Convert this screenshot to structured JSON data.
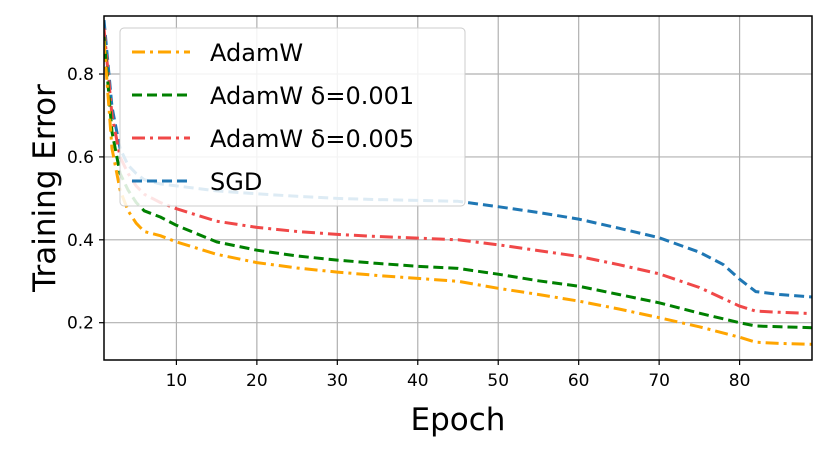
{
  "chart_data": {
    "type": "line",
    "title": "",
    "xlabel": "Epoch",
    "ylabel": "Training Error",
    "xlim": [
      1,
      89
    ],
    "ylim": [
      0.11,
      0.94
    ],
    "xticks": [
      10,
      20,
      30,
      40,
      50,
      60,
      70,
      80
    ],
    "yticks": [
      0.2,
      0.4,
      0.6,
      0.8
    ],
    "xtick_labels": [
      "10",
      "20",
      "30",
      "40",
      "50",
      "60",
      "70",
      "80"
    ],
    "ytick_labels": [
      "0.2",
      "0.4",
      "0.6",
      "0.8"
    ],
    "grid": true,
    "legend_position": "top-left",
    "series": [
      {
        "name": "AdamW",
        "color": "#FFA500",
        "style": "dashdot",
        "x": [
          1,
          2,
          3,
          4,
          5,
          6,
          8,
          10,
          15,
          20,
          25,
          30,
          35,
          40,
          45,
          50,
          55,
          60,
          65,
          70,
          75,
          80,
          82,
          85,
          89
        ],
        "y": [
          0.88,
          0.62,
          0.52,
          0.47,
          0.44,
          0.42,
          0.41,
          0.395,
          0.365,
          0.345,
          0.332,
          0.322,
          0.314,
          0.307,
          0.3,
          0.283,
          0.268,
          0.252,
          0.233,
          0.212,
          0.19,
          0.165,
          0.153,
          0.15,
          0.148
        ]
      },
      {
        "name": "AdamW δ=0.001",
        "color": "#008000",
        "style": "dashed",
        "x": [
          1,
          2,
          3,
          4,
          5,
          6,
          8,
          10,
          15,
          20,
          25,
          30,
          35,
          40,
          45,
          50,
          55,
          60,
          65,
          70,
          75,
          80,
          82,
          85,
          89
        ],
        "y": [
          0.89,
          0.66,
          0.56,
          0.52,
          0.49,
          0.47,
          0.455,
          0.435,
          0.395,
          0.375,
          0.361,
          0.351,
          0.343,
          0.336,
          0.331,
          0.317,
          0.301,
          0.288,
          0.268,
          0.248,
          0.223,
          0.2,
          0.192,
          0.19,
          0.188
        ]
      },
      {
        "name": "AdamW δ=0.005",
        "color": "#F04848",
        "style": "dashdot",
        "x": [
          1,
          2,
          3,
          4,
          5,
          6,
          8,
          10,
          15,
          20,
          25,
          30,
          35,
          40,
          45,
          50,
          55,
          60,
          65,
          70,
          75,
          80,
          82,
          85,
          89
        ],
        "y": [
          0.91,
          0.7,
          0.6,
          0.56,
          0.53,
          0.51,
          0.49,
          0.475,
          0.445,
          0.43,
          0.42,
          0.413,
          0.408,
          0.404,
          0.4,
          0.388,
          0.374,
          0.36,
          0.34,
          0.318,
          0.285,
          0.24,
          0.228,
          0.225,
          0.222
        ]
      },
      {
        "name": "SGD",
        "color": "#1F77B4",
        "style": "dashed",
        "x": [
          1,
          2,
          3,
          4,
          5,
          6,
          8,
          10,
          15,
          20,
          25,
          30,
          35,
          40,
          45,
          50,
          55,
          60,
          65,
          70,
          75,
          78,
          80,
          82,
          85,
          89
        ],
        "y": [
          0.93,
          0.72,
          0.62,
          0.58,
          0.56,
          0.545,
          0.535,
          0.53,
          0.518,
          0.511,
          0.505,
          0.5,
          0.497,
          0.495,
          0.493,
          0.48,
          0.466,
          0.45,
          0.428,
          0.405,
          0.37,
          0.34,
          0.305,
          0.275,
          0.268,
          0.262
        ]
      }
    ]
  }
}
